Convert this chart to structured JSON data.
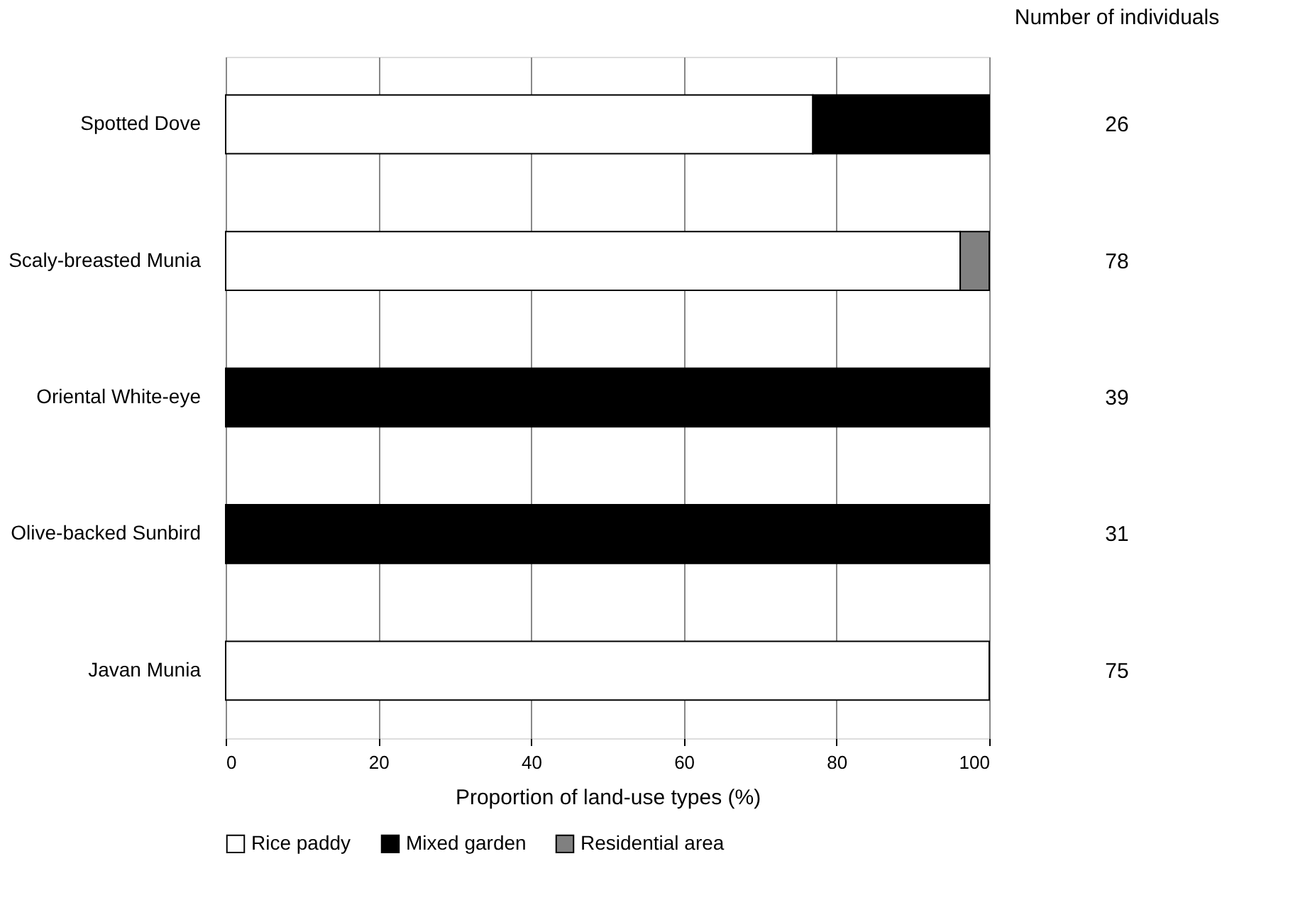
{
  "chart_data": {
    "type": "bar",
    "orientation": "horizontal",
    "stacked": true,
    "xlabel": "Proportion of land-use types (%)",
    "categories": [
      "Spotted Dove",
      "Scaly-breasted Munia",
      "Oriental White-eye",
      "Olive-backed Sunbird",
      "Javan Munia"
    ],
    "series": [
      {
        "name": "Rice paddy",
        "color": "#ffffff",
        "values": [
          76.9,
          96.2,
          0,
          0,
          100
        ]
      },
      {
        "name": "Mixed garden",
        "color": "#000000",
        "values": [
          23.1,
          0,
          100,
          100,
          0
        ]
      },
      {
        "name": "Residential area",
        "color": "#808080",
        "values": [
          0,
          3.8,
          0,
          0,
          0
        ]
      }
    ],
    "xlim": [
      0,
      100
    ],
    "xticks": [
      0,
      20,
      40,
      60,
      80,
      100
    ],
    "grid": "x",
    "legend": "bottom",
    "annotations": [
      "Number of individuals",
      "26",
      "78",
      "39",
      "31",
      "75"
    ]
  }
}
